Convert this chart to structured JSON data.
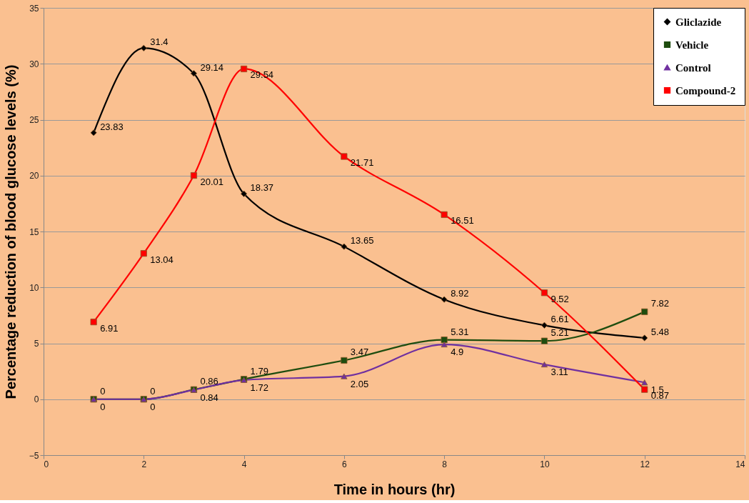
{
  "chart_data": {
    "type": "line",
    "xlabel": "Time in hours (hr)",
    "ylabel": "Percentage reduction of blood glucose levels (%)",
    "x": [
      1,
      2,
      3,
      4,
      6,
      8,
      10,
      12
    ],
    "series": [
      {
        "name": "Gliclazide",
        "color": "#000000",
        "marker": "diamond",
        "values": [
          23.83,
          31.4,
          29.14,
          18.37,
          13.65,
          8.92,
          6.61,
          5.48
        ]
      },
      {
        "name": "Vehicle",
        "color": "#1e4d0f",
        "marker": "square",
        "values": [
          0,
          0,
          0.86,
          1.79,
          3.47,
          5.31,
          5.21,
          7.82
        ]
      },
      {
        "name": "Control",
        "color": "#7030a0",
        "marker": "triangle",
        "values": [
          0,
          0,
          0.84,
          1.72,
          2.05,
          4.9,
          3.11,
          1.5
        ]
      },
      {
        "name": "Compound-2",
        "color": "#ff0000",
        "marker": "square",
        "values": [
          6.91,
          13.04,
          20.01,
          29.54,
          21.71,
          16.51,
          9.52,
          0.87
        ]
      }
    ],
    "xlim": [
      0,
      14
    ],
    "xticks": [
      0,
      2,
      4,
      6,
      8,
      10,
      12,
      14
    ],
    "ylim": [
      -5,
      35
    ],
    "yticks": [
      -5,
      0,
      5,
      10,
      15,
      20,
      25,
      30,
      35
    ],
    "grid": "y",
    "legend": "top right",
    "data_labels": true,
    "line_style": "solid"
  }
}
